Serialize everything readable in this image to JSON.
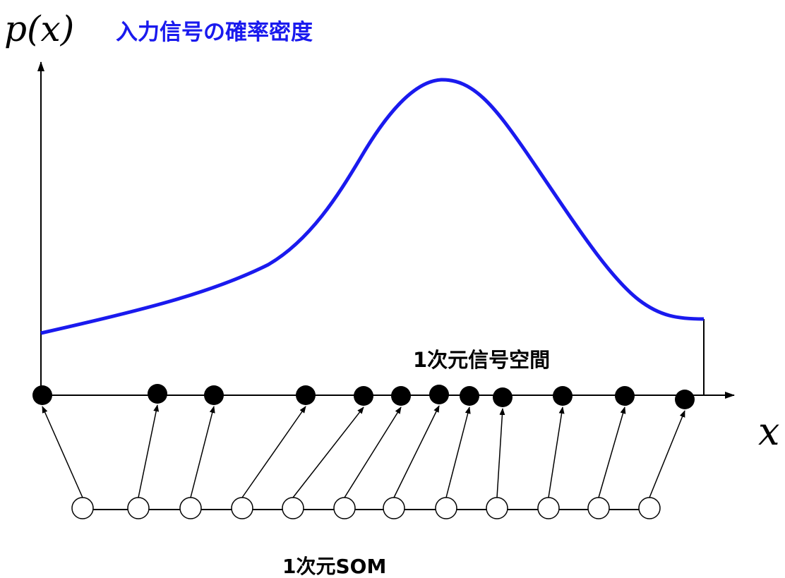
{
  "y_axis_label": "p(x)",
  "title": "入力信号の確率密度",
  "x_axis_label": "x",
  "signal_space_label": "1次元信号空間",
  "som_label": "1次元SOM",
  "colors": {
    "curve": "#1a1aee",
    "title": "#1a1aee",
    "axis": "#000000",
    "input_node": "#000000",
    "som_node_fill": "#ffffff"
  },
  "icons": {
    "weight_node": "filled-circle",
    "som_node": "hollow-circle",
    "link": "arrow"
  },
  "nodes": {
    "weight_count": 12,
    "som_count": 12
  }
}
